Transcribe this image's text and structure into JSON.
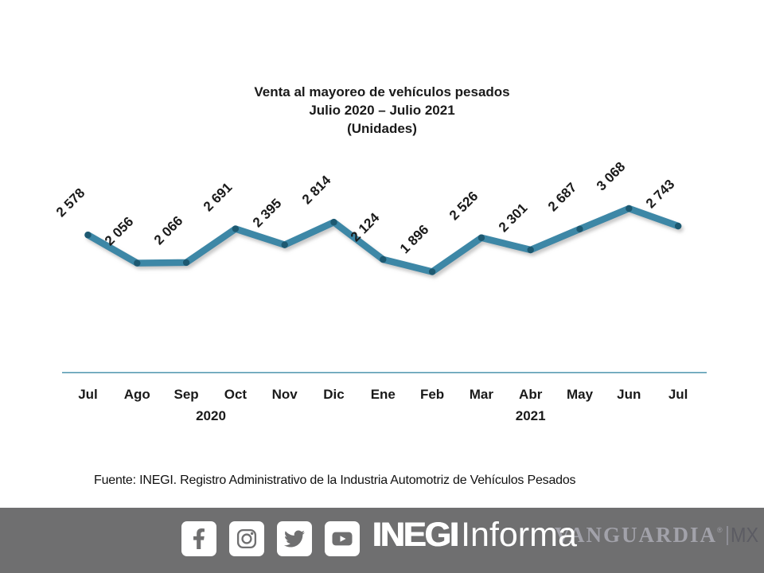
{
  "title": {
    "line1": "Venta al mayoreo de vehículos pesados",
    "line2": "Julio 2020 – Julio 2021",
    "line3": "(Unidades)"
  },
  "chart_data": {
    "type": "line",
    "title": "Venta al mayoreo de vehículos pesados",
    "subtitle": "Julio 2020 – Julio 2021",
    "units_label": "(Unidades)",
    "categories": [
      "Jul",
      "Ago",
      "Sep",
      "Oct",
      "Nov",
      "Dic",
      "Ene",
      "Feb",
      "Mar",
      "Abr",
      "May",
      "Jun",
      "Jul"
    ],
    "values": [
      2578,
      2056,
      2066,
      2691,
      2395,
      2814,
      2124,
      1896,
      2526,
      2301,
      2687,
      3068,
      2743
    ],
    "data_labels": [
      "2 578",
      "2 056",
      "2 066",
      "2 691",
      "2 395",
      "2 814",
      "2 124",
      "1 896",
      "2 526",
      "2 301",
      "2 687",
      "3 068",
      "2 743"
    ],
    "year_labels": [
      {
        "text": "2020",
        "covers": "Jul–Dic"
      },
      {
        "text": "2021",
        "covers": "Ene–Jul"
      }
    ],
    "xlabel": "",
    "ylabel": "",
    "ylim": [
      0,
      3200
    ],
    "grid": false,
    "legend": false,
    "line_color": "#3d87a6",
    "marker_color": "#1d5971",
    "axis_line_color": "#4a90a8"
  },
  "source": {
    "text": "Fuente: INEGI. Registro Administrativo de la Industria Automotriz de Vehículos Pesados"
  },
  "footer": {
    "background_color": "#6f6f70",
    "social_icons": [
      "facebook",
      "instagram",
      "twitter",
      "youtube"
    ],
    "brand": {
      "bold": "INEGI",
      "regular": "Informa"
    },
    "watermark": {
      "name": "VANGUARDIA",
      "reg_mark": "®",
      "suffix": "MX"
    }
  }
}
